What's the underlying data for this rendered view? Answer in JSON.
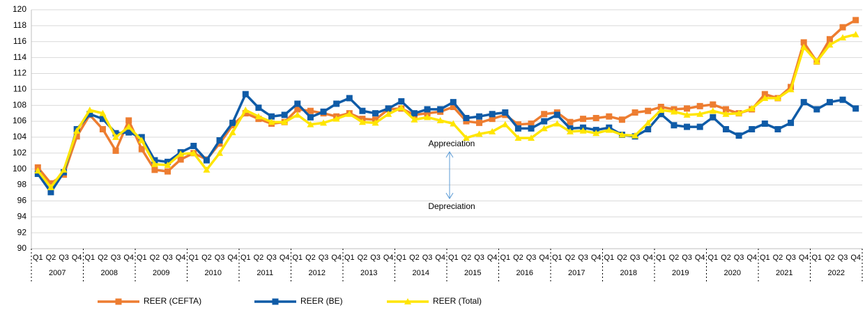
{
  "chart_data": {
    "type": "line",
    "categories": [
      "Q1",
      "Q2",
      "Q3",
      "Q4",
      "Q1",
      "Q2",
      "Q3",
      "Q4",
      "Q1",
      "Q2",
      "Q3",
      "Q4",
      "Q1",
      "Q2",
      "Q3",
      "Q4",
      "Q1",
      "Q2",
      "Q3",
      "Q4",
      "Q1",
      "Q2",
      "Q3",
      "Q4",
      "Q1",
      "Q2",
      "Q3",
      "Q4",
      "Q1",
      "Q2",
      "Q3",
      "Q4",
      "Q1",
      "Q2",
      "Q3",
      "Q4",
      "Q1",
      "Q2",
      "Q3",
      "Q4",
      "Q1",
      "Q2",
      "Q3",
      "Q4",
      "Q1",
      "Q2",
      "Q3",
      "Q4",
      "Q1",
      "Q2",
      "Q3",
      "Q4",
      "Q1",
      "Q2",
      "Q3",
      "Q4",
      "Q1",
      "Q2",
      "Q3",
      "Q4",
      "Q1",
      "Q2",
      "Q3",
      "Q4"
    ],
    "years": [
      "2007",
      "2008",
      "2009",
      "2010",
      "2011",
      "2012",
      "2013",
      "2014",
      "2015",
      "2016",
      "2017",
      "2018",
      "2019",
      "2020",
      "2021",
      "2022"
    ],
    "series": [
      {
        "name": "REER (CEFTA)",
        "color": "#ed7d31",
        "marker": "square",
        "values": [
          100.2,
          98.2,
          99.3,
          104.1,
          106.8,
          105.0,
          102.3,
          106.1,
          102.5,
          99.9,
          99.7,
          101.2,
          102.0,
          101.2,
          103.2,
          105.5,
          107.0,
          106.3,
          105.7,
          105.9,
          107.5,
          107.3,
          107.0,
          106.6,
          107.0,
          106.3,
          106.2,
          107.5,
          107.6,
          106.8,
          107.0,
          107.2,
          107.8,
          106.0,
          105.8,
          106.3,
          106.8,
          105.6,
          105.7,
          106.9,
          107.1,
          105.9,
          106.3,
          106.4,
          106.6,
          106.2,
          107.1,
          107.3,
          107.8,
          107.5,
          107.6,
          107.9,
          108.1,
          107.5,
          107.0,
          107.5,
          109.4,
          108.9,
          110.3,
          115.9,
          113.5,
          116.3,
          117.8,
          118.7
        ]
      },
      {
        "name": "REER (BE)",
        "color": "#0f5ba7",
        "marker": "square",
        "values": [
          99.4,
          97.1,
          99.6,
          105.0,
          106.9,
          106.3,
          104.5,
          104.6,
          104.0,
          101.1,
          100.9,
          102.1,
          102.9,
          101.1,
          103.6,
          105.8,
          109.4,
          107.7,
          106.6,
          106.8,
          108.2,
          106.5,
          107.2,
          108.2,
          108.9,
          107.3,
          107.0,
          107.6,
          108.5,
          107.0,
          107.5,
          107.5,
          108.4,
          106.4,
          106.6,
          106.9,
          107.1,
          105.1,
          105.1,
          106.0,
          106.8,
          105.1,
          105.2,
          104.9,
          105.2,
          104.3,
          104.1,
          105.0,
          106.9,
          105.5,
          105.3,
          105.3,
          106.5,
          105.0,
          104.2,
          105.0,
          105.7,
          105.0,
          105.8,
          108.4,
          107.5,
          108.4,
          108.7,
          107.6
        ]
      },
      {
        "name": "REER (Total)",
        "color": "#ffe500",
        "marker": "triangle",
        "values": [
          99.8,
          97.7,
          99.9,
          104.8,
          107.4,
          107.0,
          104.0,
          105.3,
          103.6,
          100.6,
          100.5,
          101.9,
          102.0,
          99.9,
          102.0,
          104.6,
          107.4,
          106.6,
          105.9,
          105.9,
          106.8,
          105.6,
          105.8,
          106.3,
          106.9,
          105.9,
          105.8,
          106.9,
          107.7,
          106.2,
          106.5,
          106.1,
          105.7,
          103.9,
          104.4,
          104.7,
          105.6,
          103.9,
          103.9,
          105.1,
          105.7,
          104.7,
          104.8,
          104.5,
          104.9,
          104.3,
          104.2,
          105.8,
          107.4,
          107.2,
          106.8,
          106.9,
          107.3,
          106.9,
          107.0,
          107.6,
          108.9,
          108.9,
          110.0,
          115.3,
          113.5,
          115.6,
          116.5,
          116.9
        ]
      }
    ],
    "ylim": [
      90,
      120
    ],
    "yticks": [
      90,
      92,
      94,
      96,
      98,
      100,
      102,
      104,
      106,
      108,
      110,
      112,
      114,
      116,
      118,
      120
    ],
    "grid": true,
    "legend": "bottom",
    "annotations": [
      "Appreciation",
      "Depreciation"
    ]
  }
}
